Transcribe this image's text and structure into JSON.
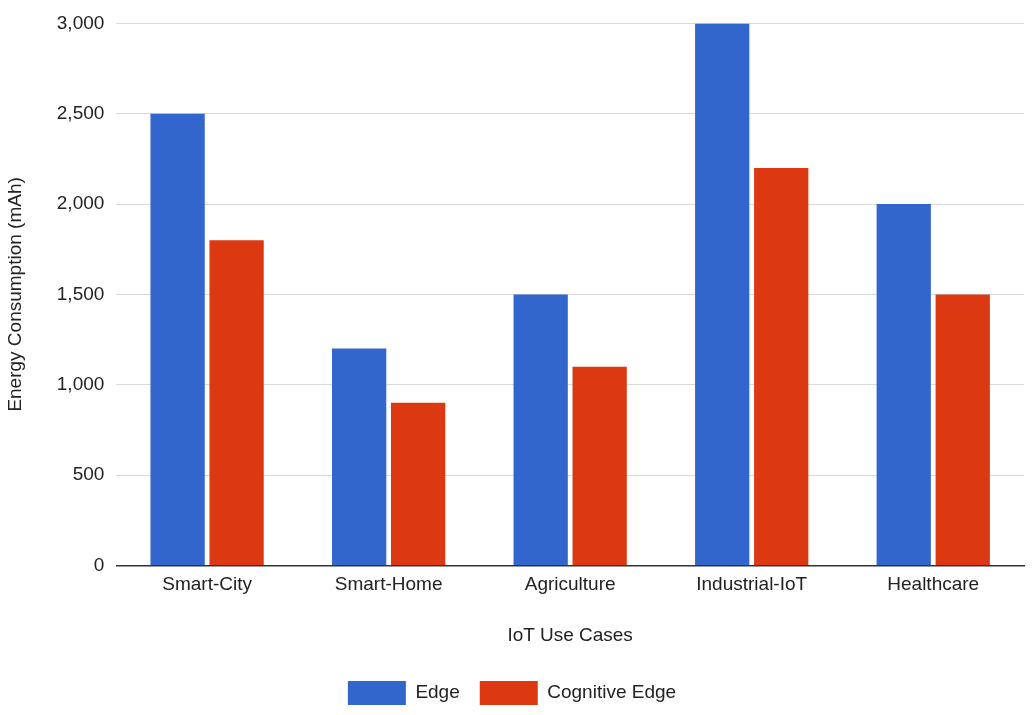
{
  "chart_data": {
    "type": "bar",
    "xlabel": "IoT Use Cases",
    "ylabel": "Energy Consumption (mAh)",
    "categories": [
      "Smart-City",
      "Smart-Home",
      "Agriculture",
      "Industrial-IoT",
      "Healthcare"
    ],
    "series": [
      {
        "name": "Edge",
        "color": "#3366cc",
        "values": [
          2500,
          1200,
          1500,
          3000,
          2000
        ]
      },
      {
        "name": "Cognitive Edge",
        "color": "#dc3912",
        "values": [
          1800,
          900,
          1100,
          2200,
          1500
        ]
      }
    ],
    "ylim": [
      0,
      3000
    ],
    "yticks": [
      0,
      500,
      {
        "value": 1000,
        "label": "1,000"
      },
      {
        "value": 1500,
        "label": "1,500"
      },
      {
        "value": 2000,
        "label": "2,000"
      },
      {
        "value": 2500,
        "label": "2,500"
      },
      {
        "value": 3000,
        "label": "3,000"
      }
    ],
    "grid": "y",
    "legend": "bottom"
  }
}
